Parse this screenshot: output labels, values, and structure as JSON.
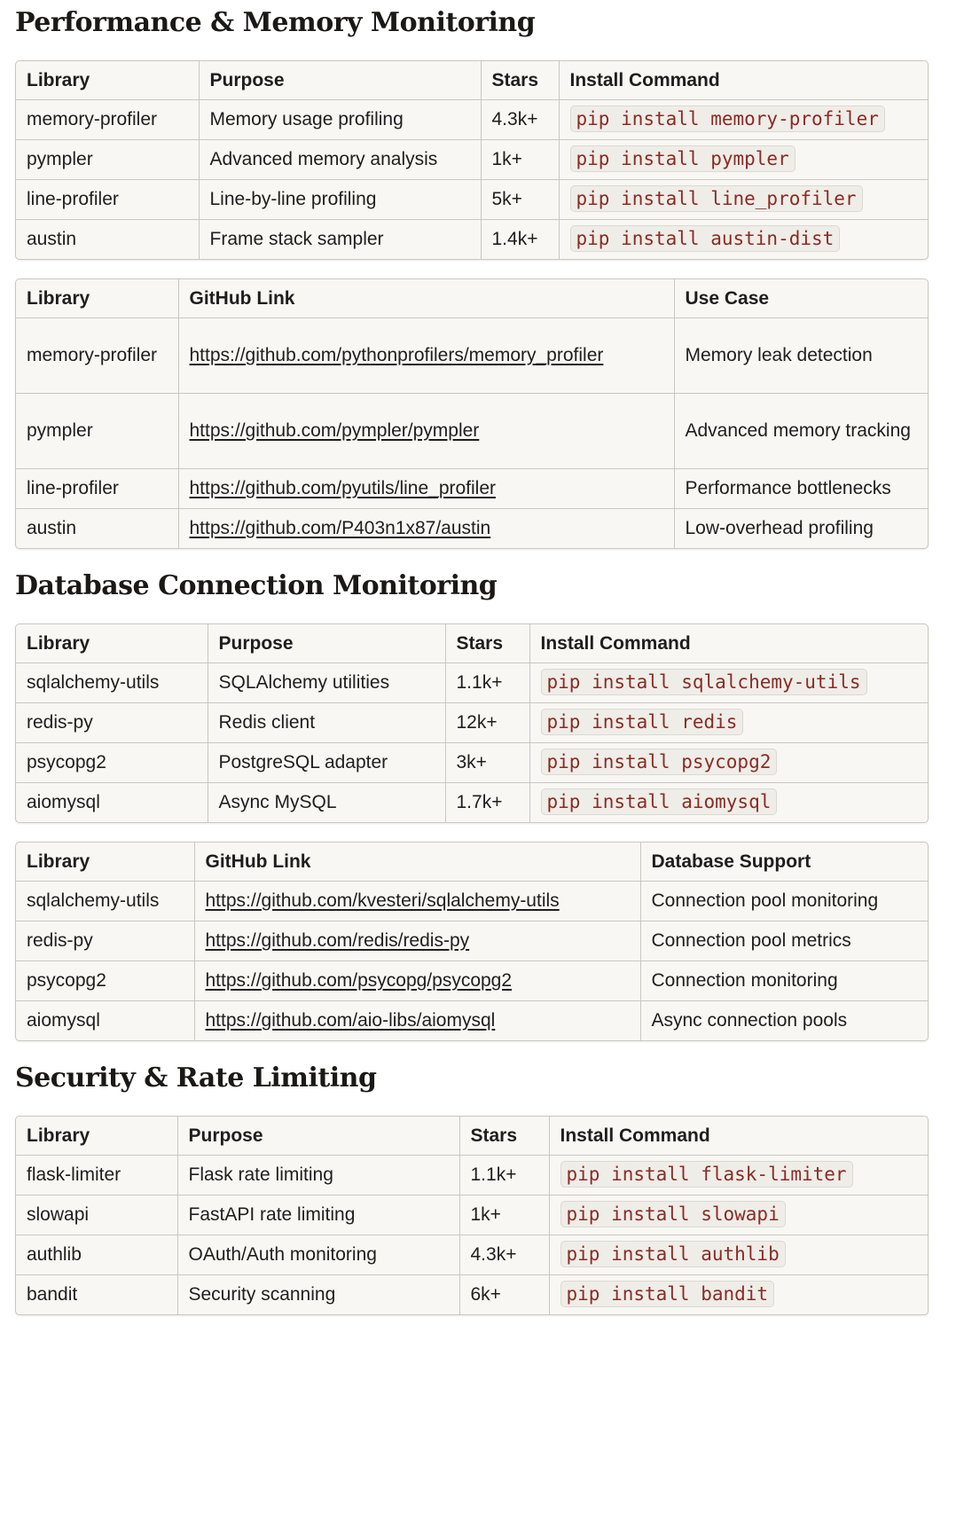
{
  "sections": [
    {
      "title": "Performance & Memory Monitoring",
      "tableA": {
        "headers": [
          "Library",
          "Purpose",
          "Stars",
          "Install Command"
        ],
        "rows": [
          [
            "memory-profiler",
            "Memory usage profiling",
            "4.3k+",
            "pip install memory-profiler"
          ],
          [
            "pympler",
            "Advanced memory analysis",
            "1k+",
            "pip install pympler"
          ],
          [
            "line-profiler",
            "Line-by-line profiling",
            "5k+",
            "pip install line_profiler"
          ],
          [
            "austin",
            "Frame stack sampler",
            "1.4k+",
            "pip install austin-dist"
          ]
        ]
      },
      "tableB": {
        "headers": [
          "Library",
          "GitHub Link",
          "Use Case"
        ],
        "rows": [
          [
            "memory-profiler",
            "https://github.com/pythonprofilers/memory_profiler",
            "Memory leak detection"
          ],
          [
            "pympler",
            "https://github.com/pympler/pympler",
            "Advanced memory tracking"
          ],
          [
            "line-profiler",
            "https://github.com/pyutils/line_profiler",
            "Performance bottlenecks"
          ],
          [
            "austin",
            "https://github.com/P403n1x87/austin",
            "Low-overhead profiling"
          ]
        ]
      }
    },
    {
      "title": "Database Connection Monitoring",
      "tableA": {
        "headers": [
          "Library",
          "Purpose",
          "Stars",
          "Install Command"
        ],
        "rows": [
          [
            "sqlalchemy-utils",
            "SQLAlchemy utilities",
            "1.1k+",
            "pip install sqlalchemy-utils"
          ],
          [
            "redis-py",
            "Redis client",
            "12k+",
            "pip install redis"
          ],
          [
            "psycopg2",
            "PostgreSQL adapter",
            "3k+",
            "pip install psycopg2"
          ],
          [
            "aiomysql",
            "Async MySQL",
            "1.7k+",
            "pip install aiomysql"
          ]
        ]
      },
      "tableB": {
        "headers": [
          "Library",
          "GitHub Link",
          "Database Support"
        ],
        "rows": [
          [
            "sqlalchemy-utils",
            "https://github.com/kvesteri/sqlalchemy-utils",
            "Connection pool monitoring"
          ],
          [
            "redis-py",
            "https://github.com/redis/redis-py",
            "Connection pool metrics"
          ],
          [
            "psycopg2",
            "https://github.com/psycopg/psycopg2",
            "Connection monitoring"
          ],
          [
            "aiomysql",
            "https://github.com/aio-libs/aiomysql",
            "Async connection pools"
          ]
        ]
      }
    },
    {
      "title": "Security & Rate Limiting",
      "tableA": {
        "headers": [
          "Library",
          "Purpose",
          "Stars",
          "Install Command"
        ],
        "rows": [
          [
            "flask-limiter",
            "Flask rate limiting",
            "1.1k+",
            "pip install flask-limiter"
          ],
          [
            "slowapi",
            "FastAPI rate limiting",
            "1k+",
            "pip install slowapi"
          ],
          [
            "authlib",
            "OAuth/Auth monitoring",
            "4.3k+",
            "pip install authlib"
          ],
          [
            "bandit",
            "Security scanning",
            "6k+",
            "pip install bandit"
          ]
        ]
      }
    }
  ]
}
